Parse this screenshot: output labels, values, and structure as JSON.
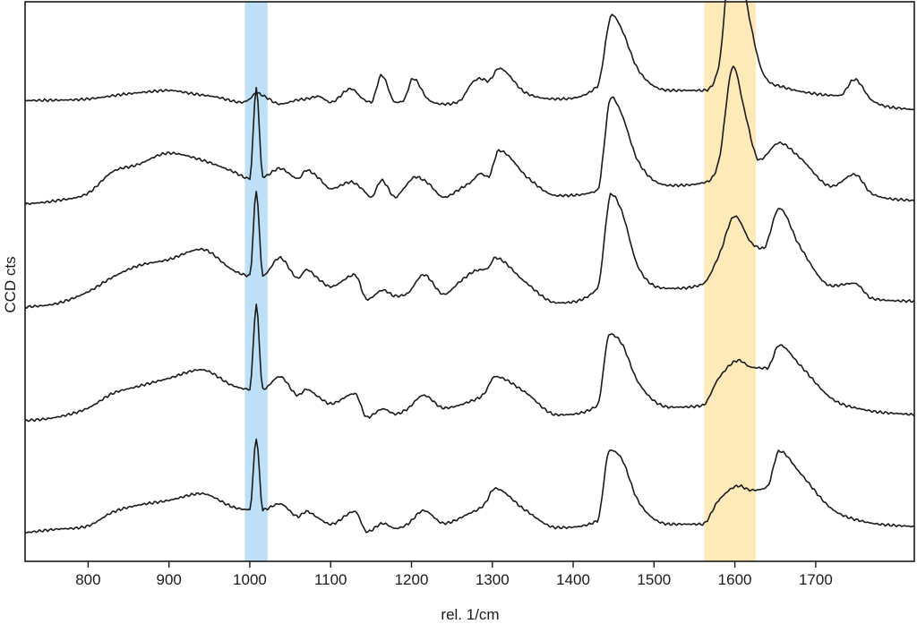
{
  "chart_data": {
    "type": "line",
    "title": "",
    "xlabel": "rel. 1/cm",
    "ylabel": "CCD cts",
    "xlim": [
      722,
      1822
    ],
    "x_ticks": [
      800,
      900,
      1000,
      1100,
      1200,
      1300,
      1400,
      1500,
      1600,
      1700
    ],
    "y_ticks": [],
    "grid": false,
    "legend": "none",
    "line_color": "#1a1a1a",
    "highlight_bands": [
      {
        "x0": 994,
        "x1": 1022,
        "color": "#bde0f7"
      },
      {
        "x0": 1562,
        "x1": 1626,
        "color": "#fdeab8"
      }
    ],
    "series": [
      {
        "x": [
          722,
          800,
          840,
          870,
          900,
          930,
          960,
          990,
          1000,
          1008,
          1020,
          1037,
          1060,
          1070,
          1085,
          1100,
          1125,
          1140,
          1150,
          1163,
          1180,
          1190,
          1202,
          1220,
          1240,
          1260,
          1275,
          1285,
          1295,
          1308,
          1340,
          1380,
          1430,
          1448,
          1460,
          1480,
          1520,
          1560,
          1580,
          1598,
          1610,
          1635,
          1660,
          1700,
          1730,
          1748,
          1770,
          1822
        ],
        "y": [
          108,
          110,
          115,
          118,
          120,
          116,
          112,
          106,
          110,
          117,
          112,
          104,
          109,
          110,
          113,
          106,
          122,
          110,
          106,
          138,
          106,
          108,
          134,
          110,
          104,
          108,
          129,
          134,
          131,
          146,
          118,
          110,
          125,
          209,
          192,
          145,
          120,
          120,
          148,
          305,
          245,
          140,
          124,
          116,
          114,
          133,
          108,
          97
        ]
      },
      {
        "x": [
          722,
          760,
          800,
          830,
          860,
          900,
          940,
          980,
          1000,
          1008,
          1016,
          1037,
          1060,
          1070,
          1085,
          1100,
          1125,
          1140,
          1150,
          1163,
          1180,
          1190,
          1205,
          1220,
          1240,
          1260,
          1275,
          1285,
          1295,
          1308,
          1345,
          1380,
          1430,
          1447,
          1460,
          1480,
          1520,
          1560,
          1580,
          1598,
          1612,
          1630,
          1655,
          1680,
          1720,
          1748,
          1770,
          1822
        ],
        "y": [
          100,
          104,
          113,
          138,
          146,
          160,
          152,
          138,
          130,
          237,
          132,
          142,
          130,
          140,
          131,
          118,
          126,
          117,
          108,
          128,
          108,
          118,
          132,
          125,
          108,
          118,
          127,
          136,
          132,
          163,
          130,
          110,
          116,
          226,
          206,
          151,
          122,
          125,
          150,
          262,
          210,
          152,
          172,
          155,
          121,
          135,
          112,
          104
        ]
      },
      {
        "x": [
          722,
          760,
          800,
          830,
          860,
          900,
          940,
          980,
          1000,
          1008,
          1016,
          1037,
          1060,
          1070,
          1085,
          1100,
          1130,
          1145,
          1165,
          1180,
          1195,
          1215,
          1240,
          1260,
          1280,
          1295,
          1303,
          1340,
          1380,
          1430,
          1447,
          1460,
          1480,
          1520,
          1560,
          1580,
          1600,
          1620,
          1635,
          1655,
          1680,
          1720,
          1748,
          1770,
          1822
        ],
        "y": [
          100,
          104,
          118,
          135,
          148,
          156,
          168,
          143,
          137,
          236,
          137,
          158,
          134,
          144,
          133,
          124,
          138,
          109,
          120,
          113,
          116,
          138,
          115,
          130,
          143,
          146,
          158,
          130,
          105,
          122,
          233,
          213,
          148,
          122,
          127,
          160,
          207,
          176,
          169,
          216,
          172,
          125,
          128,
          110,
          107
        ]
      },
      {
        "x": [
          722,
          760,
          800,
          830,
          860,
          900,
          940,
          980,
          1000,
          1008,
          1016,
          1037,
          1060,
          1070,
          1085,
          1100,
          1130,
          1145,
          1165,
          1180,
          1195,
          1215,
          1240,
          1270,
          1290,
          1303,
          1340,
          1380,
          1430,
          1445,
          1460,
          1480,
          1520,
          1560,
          1580,
          1605,
          1620,
          1640,
          1655,
          1680,
          1720,
          1760,
          1822
        ],
        "y": [
          100,
          104,
          115,
          132,
          140,
          150,
          160,
          141,
          137,
          236,
          137,
          152,
          130,
          137,
          128,
          120,
          132,
          104,
          114,
          108,
          114,
          130,
          115,
          122,
          132,
          152,
          134,
          107,
          118,
          202,
          191,
          146,
          116,
          118,
          150,
          171,
          163,
          162,
          189,
          166,
          126,
          113,
          107
        ]
      },
      {
        "x": [
          722,
          760,
          800,
          830,
          860,
          900,
          940,
          980,
          1000,
          1008,
          1016,
          1037,
          1060,
          1070,
          1085,
          1100,
          1130,
          1145,
          1165,
          1180,
          1195,
          1215,
          1240,
          1270,
          1290,
          1303,
          1340,
          1380,
          1430,
          1445,
          1460,
          1480,
          1520,
          1560,
          1580,
          1605,
          1620,
          1640,
          1655,
          1680,
          1720,
          1760,
          1822
        ],
        "y": [
          100,
          104,
          108,
          124,
          132,
          138,
          146,
          130,
          127,
          211,
          127,
          134,
          119,
          125,
          117,
          110,
          125,
          101,
          111,
          105,
          110,
          126,
          111,
          122,
          133,
          152,
          127,
          106,
          114,
          197,
          187,
          138,
          110,
          110,
          138,
          155,
          150,
          154,
          196,
          171,
          128,
          113,
          107
        ]
      }
    ]
  }
}
